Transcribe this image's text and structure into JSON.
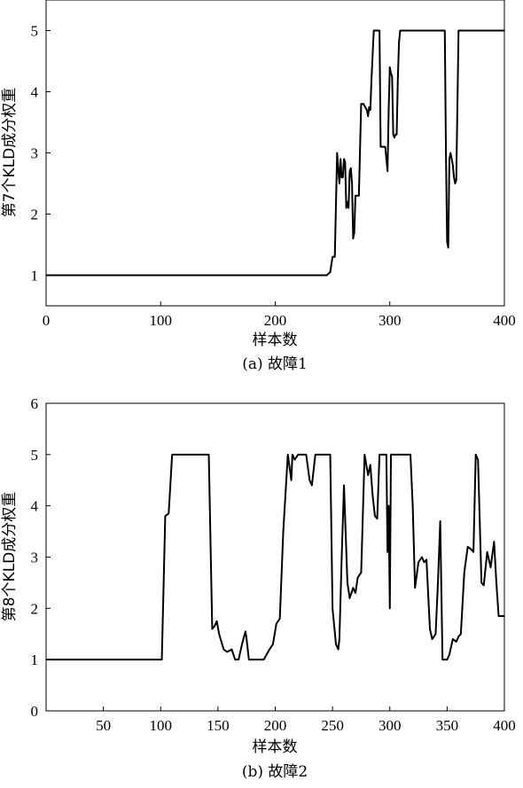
{
  "chart_data": [
    {
      "type": "line",
      "caption": "(a) 故障1",
      "xlabel": "样本数",
      "ylabel": "第7个KLD成分权重",
      "xlim": [
        0,
        400
      ],
      "ylim": [
        0.5,
        5.5
      ],
      "xticks": [
        0,
        100,
        200,
        300,
        400
      ],
      "yticks": [
        1,
        2,
        3,
        4,
        5
      ],
      "grid": false,
      "series": [
        {
          "x": [
            0,
            245,
            248,
            250,
            252,
            254,
            256,
            257,
            258,
            259,
            260,
            261,
            262,
            263,
            264,
            265,
            266,
            267,
            268,
            269,
            270,
            271,
            272,
            273,
            275,
            277,
            280,
            281,
            282,
            283,
            284,
            285,
            286,
            288,
            291,
            292,
            296,
            298,
            299,
            300,
            301,
            302,
            303,
            304,
            305,
            306,
            307,
            308,
            309,
            310,
            348,
            349,
            350,
            351,
            352,
            353,
            354,
            355,
            356,
            357,
            358,
            360,
            400
          ],
          "y": [
            1,
            1,
            1.05,
            1.3,
            1.3,
            3.0,
            2.5,
            2.9,
            2.6,
            2.6,
            2.9,
            2.85,
            2.1,
            2.2,
            2.1,
            2.7,
            2.75,
            2.5,
            1.6,
            1.7,
            2.3,
            2.3,
            2.3,
            2.3,
            3.8,
            3.8,
            3.7,
            3.6,
            3.75,
            3.7,
            4.2,
            4.6,
            5.0,
            5.0,
            5.0,
            3.1,
            3.1,
            2.7,
            3.7,
            4.4,
            4.3,
            4.25,
            3.3,
            3.25,
            3.3,
            3.3,
            4.2,
            4.8,
            5.0,
            5.0,
            5.0,
            3.0,
            1.55,
            1.45,
            2.9,
            3.0,
            2.9,
            2.8,
            2.6,
            2.5,
            2.55,
            5.0,
            5.0
          ]
        }
      ]
    },
    {
      "type": "line",
      "caption": "(b) 故障2",
      "xlabel": "样本数",
      "ylabel": "第8个KLD成分权重",
      "xlim": [
        0,
        400
      ],
      "ylim": [
        0,
        6
      ],
      "xticks": [
        50,
        100,
        150,
        200,
        250,
        300,
        350,
        400
      ],
      "yticks": [
        0,
        1,
        2,
        3,
        4,
        5,
        6
      ],
      "grid": false,
      "series": [
        {
          "x": [
            0,
            101,
            104,
            107,
            110,
            112,
            142,
            145,
            147,
            149,
            151,
            153,
            155,
            158,
            162,
            165,
            168,
            171,
            174,
            175,
            177,
            180,
            185,
            190,
            195,
            198,
            201,
            204,
            207,
            211,
            214,
            215,
            217,
            220,
            222,
            227,
            230,
            232,
            235,
            248,
            250,
            253,
            255,
            256,
            258,
            260,
            263,
            265,
            268,
            270,
            272,
            275,
            278,
            281,
            283,
            285,
            287,
            289,
            291,
            293,
            295,
            297,
            298,
            299,
            300,
            301,
            302,
            303,
            318,
            320,
            322,
            325,
            328,
            330,
            332,
            335,
            337,
            340,
            342,
            344,
            346,
            348,
            350,
            352,
            355,
            358,
            360,
            362,
            365,
            368,
            371,
            373,
            375,
            377,
            380,
            382,
            385,
            388,
            391,
            393,
            395,
            400
          ],
          "y": [
            1,
            1,
            3.8,
            3.85,
            5.0,
            5.0,
            5.0,
            1.6,
            1.65,
            1.75,
            1.5,
            1.35,
            1.2,
            1.15,
            1.2,
            1.0,
            1.0,
            1.3,
            1.55,
            1.4,
            1.0,
            1.0,
            1.0,
            1.0,
            1.2,
            1.3,
            1.7,
            1.8,
            3.5,
            5.0,
            4.5,
            5.0,
            4.9,
            5.0,
            5.0,
            5.0,
            4.5,
            4.4,
            5.0,
            5.0,
            2.0,
            1.3,
            1.2,
            1.4,
            3.0,
            4.4,
            2.5,
            2.2,
            2.4,
            2.3,
            2.6,
            2.7,
            5.0,
            4.6,
            4.8,
            4.2,
            3.8,
            3.75,
            5.0,
            5.0,
            5.0,
            5.0,
            3.1,
            4.0,
            2.0,
            5.0,
            5.0,
            5.0,
            5.0,
            4.0,
            2.4,
            2.9,
            3.0,
            2.9,
            2.95,
            1.6,
            1.4,
            1.5,
            2.5,
            3.7,
            1.0,
            1.0,
            1.0,
            1.1,
            1.4,
            1.35,
            1.45,
            1.5,
            2.7,
            3.2,
            3.15,
            3.1,
            5.0,
            4.9,
            2.5,
            2.45,
            3.1,
            2.8,
            3.3,
            2.5,
            1.85,
            1.85
          ]
        }
      ]
    }
  ]
}
